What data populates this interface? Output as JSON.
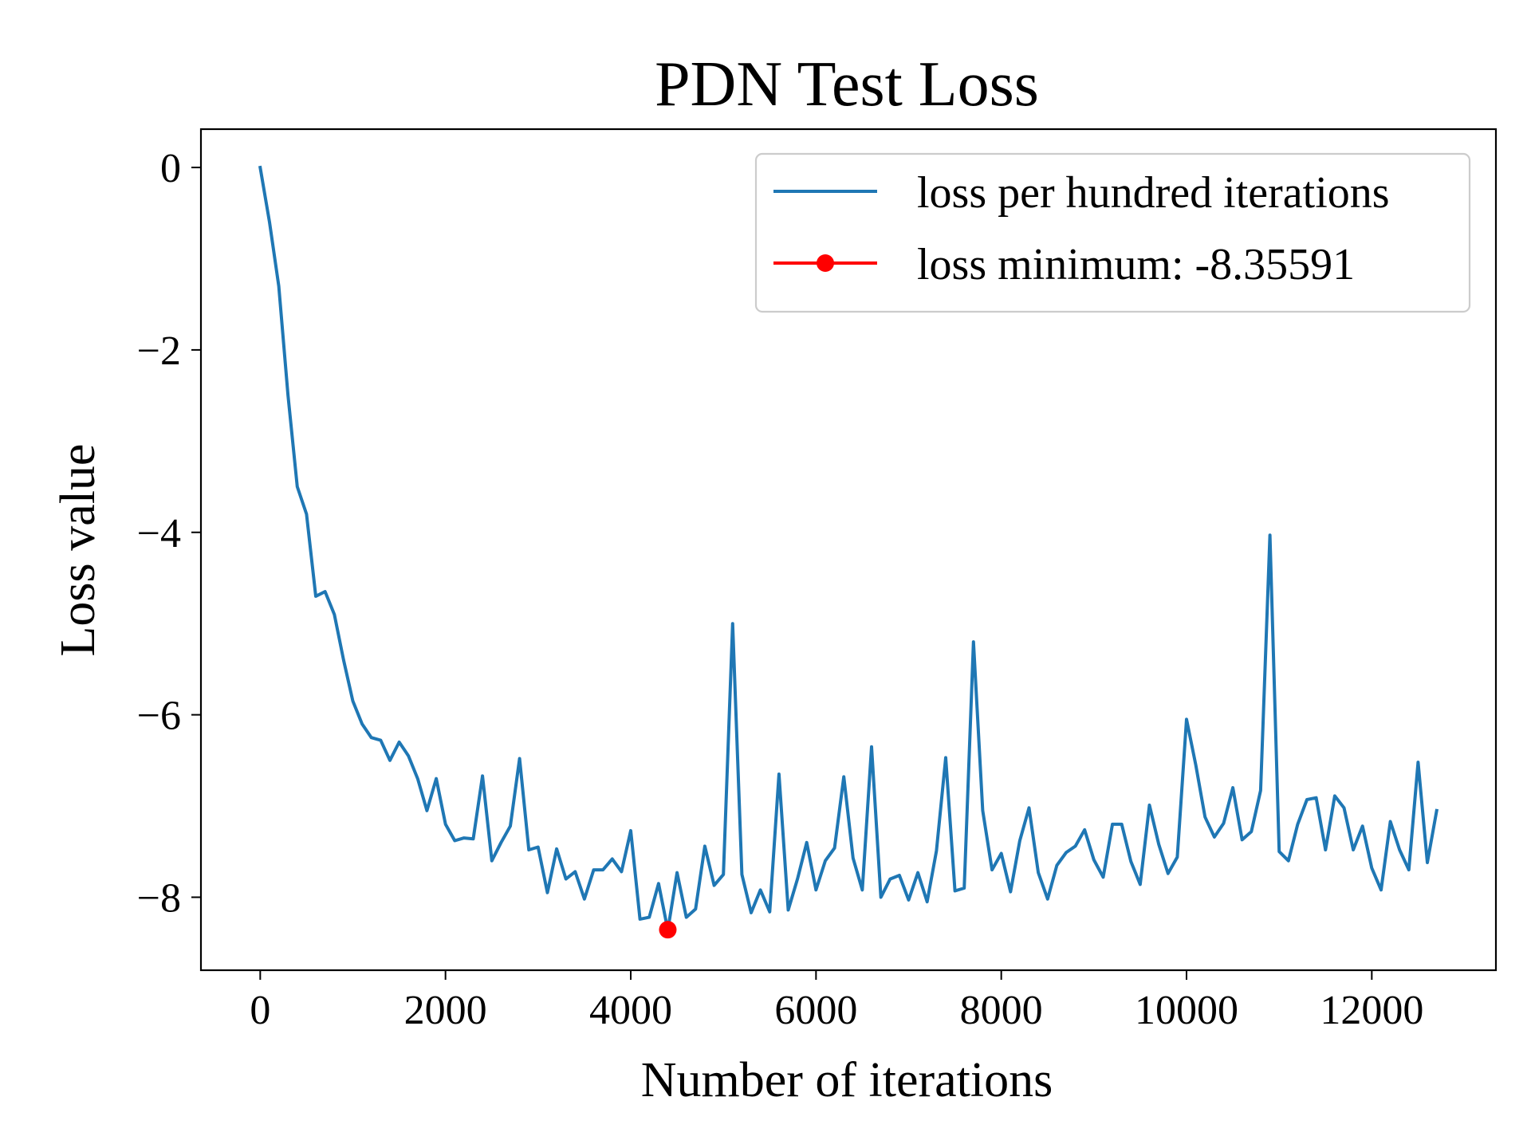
{
  "chart_data": {
    "type": "line",
    "title": "PDN  Test Loss",
    "xlabel": "Number of iterations",
    "ylabel": "Loss value",
    "xlim": [
      -640,
      13340
    ],
    "ylim": [
      -8.8,
      0.42
    ],
    "xticks": [
      0,
      2000,
      4000,
      6000,
      8000,
      10000,
      12000
    ],
    "xtick_labels": [
      "0",
      "2000",
      "4000",
      "6000",
      "8000",
      "10000",
      "12000"
    ],
    "yticks": [
      0,
      -2,
      -4,
      -6,
      -8
    ],
    "ytick_labels": [
      "0",
      "−2",
      "−4",
      "−6",
      "−8"
    ],
    "grid": false,
    "legend_position": "top-right",
    "series": [
      {
        "name": "loss per hundred iterations",
        "color": "#1f77b4",
        "x": [
          0,
          100,
          200,
          300,
          400,
          500,
          600,
          700,
          800,
          900,
          1000,
          1100,
          1200,
          1300,
          1400,
          1500,
          1600,
          1700,
          1800,
          1900,
          2000,
          2100,
          2200,
          2300,
          2400,
          2500,
          2600,
          2700,
          2800,
          2900,
          3000,
          3100,
          3200,
          3300,
          3400,
          3500,
          3600,
          3700,
          3800,
          3900,
          4000,
          4100,
          4200,
          4300,
          4400,
          4500,
          4600,
          4700,
          4800,
          4900,
          5000,
          5100,
          5200,
          5300,
          5400,
          5500,
          5600,
          5700,
          5800,
          5900,
          6000,
          6100,
          6200,
          6300,
          6400,
          6500,
          6600,
          6700,
          6800,
          6900,
          7000,
          7100,
          7200,
          7300,
          7400,
          7500,
          7600,
          7700,
          7800,
          7900,
          8000,
          8100,
          8200,
          8300,
          8400,
          8500,
          8600,
          8700,
          8800,
          8900,
          9000,
          9100,
          9200,
          9300,
          9400,
          9500,
          9600,
          9700,
          9800,
          9900,
          10000,
          10100,
          10200,
          10300,
          10400,
          10500,
          10600,
          10700,
          10800,
          10900,
          11000,
          11100,
          11200,
          11300,
          11400,
          11500,
          11600,
          11700,
          11800,
          11900,
          12000,
          12100,
          12200,
          12300,
          12400,
          12500,
          12600,
          12700
        ],
        "y": [
          0,
          -0.6,
          -1.3,
          -2.5,
          -3.5,
          -3.8,
          -4.7,
          -4.65,
          -4.9,
          -5.4,
          -5.85,
          -6.1,
          -6.25,
          -6.28,
          -6.5,
          -6.3,
          -6.45,
          -6.7,
          -7.05,
          -6.7,
          -7.2,
          -7.38,
          -7.35,
          -7.36,
          -6.67,
          -7.6,
          -7.4,
          -7.22,
          -6.48,
          -7.48,
          -7.45,
          -7.95,
          -7.47,
          -7.8,
          -7.72,
          -8.02,
          -7.7,
          -7.7,
          -7.58,
          -7.72,
          -7.27,
          -8.24,
          -8.22,
          -7.85,
          -8.36,
          -7.73,
          -8.22,
          -8.13,
          -7.44,
          -7.87,
          -7.75,
          -5.0,
          -7.75,
          -8.17,
          -7.92,
          -8.16,
          -6.65,
          -8.14,
          -7.8,
          -7.4,
          -7.92,
          -7.6,
          -7.46,
          -6.68,
          -7.57,
          -7.92,
          -6.35,
          -8.0,
          -7.8,
          -7.76,
          -8.03,
          -7.73,
          -8.05,
          -7.49,
          -6.47,
          -7.93,
          -7.9,
          -5.2,
          -7.05,
          -7.7,
          -7.52,
          -7.94,
          -7.38,
          -7.02,
          -7.73,
          -8.02,
          -7.65,
          -7.51,
          -7.44,
          -7.26,
          -7.59,
          -7.78,
          -7.2,
          -7.2,
          -7.61,
          -7.86,
          -6.99,
          -7.42,
          -7.74,
          -7.56,
          -6.05,
          -6.55,
          -7.12,
          -7.34,
          -7.19,
          -6.8,
          -7.37,
          -7.28,
          -6.83,
          -4.03,
          -7.5,
          -7.6,
          -7.2,
          -6.93,
          -6.91,
          -7.48,
          -6.89,
          -7.02,
          -7.48,
          -7.22,
          -7.68,
          -7.92,
          -7.17,
          -7.48,
          -7.7,
          -6.52,
          -7.62,
          -7.05
        ]
      }
    ],
    "minimum": {
      "label": "loss minimum: -8.35591",
      "x": 4400,
      "y": -8.35591,
      "color": "#ff0000"
    }
  }
}
